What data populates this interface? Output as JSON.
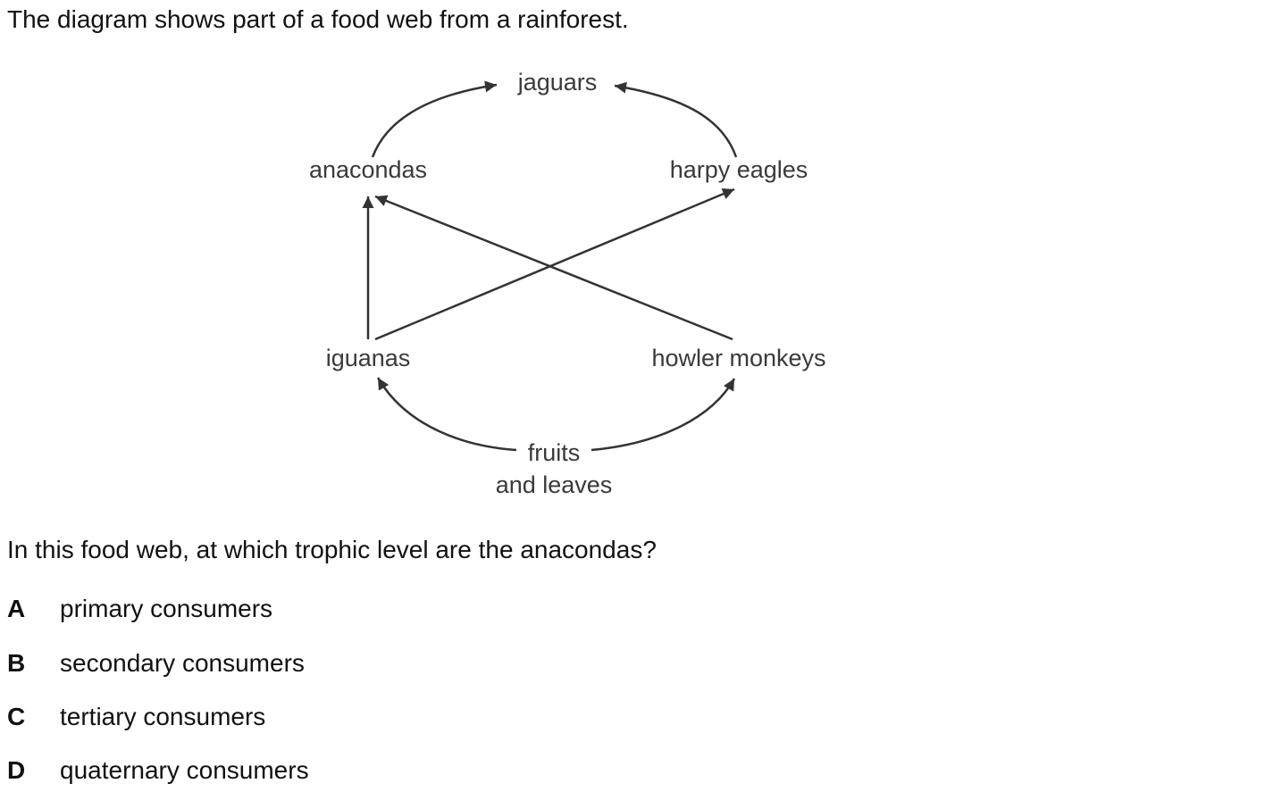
{
  "intro": "The diagram shows part of a food web from a rainforest.",
  "diagram": {
    "nodes": {
      "jaguars": "jaguars",
      "anacondas": "anacondas",
      "harpy_eagles": "harpy eagles",
      "iguanas": "iguanas",
      "howler_monkeys": "howler monkeys",
      "fruits_line1": "fruits",
      "fruits_line2": "and leaves"
    },
    "edges": [
      {
        "from": "fruits and leaves",
        "to": "iguanas"
      },
      {
        "from": "fruits and leaves",
        "to": "howler monkeys"
      },
      {
        "from": "iguanas",
        "to": "anacondas"
      },
      {
        "from": "iguanas",
        "to": "harpy eagles"
      },
      {
        "from": "howler monkeys",
        "to": "anacondas"
      },
      {
        "from": "anacondas",
        "to": "jaguars"
      },
      {
        "from": "harpy eagles",
        "to": "jaguars"
      }
    ]
  },
  "question": "In this food web, at which trophic level are the anacondas?",
  "options": [
    {
      "letter": "A",
      "text": "primary consumers"
    },
    {
      "letter": "B",
      "text": "secondary consumers"
    },
    {
      "letter": "C",
      "text": "tertiary consumers"
    },
    {
      "letter": "D",
      "text": "quaternary consumers"
    }
  ]
}
